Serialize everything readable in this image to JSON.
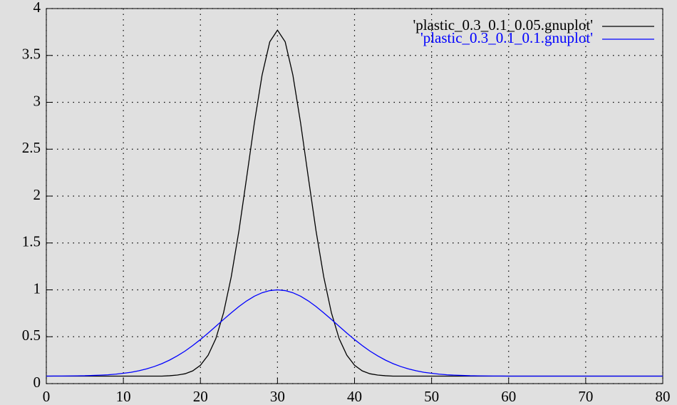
{
  "chart_data": {
    "type": "line",
    "x": [
      0,
      1,
      2,
      3,
      4,
      5,
      6,
      7,
      8,
      9,
      10,
      11,
      12,
      13,
      14,
      15,
      16,
      17,
      18,
      19,
      20,
      21,
      22,
      23,
      24,
      25,
      26,
      27,
      28,
      29,
      30,
      31,
      32,
      33,
      34,
      35,
      36,
      37,
      38,
      39,
      40,
      41,
      42,
      43,
      44,
      45,
      46,
      47,
      48,
      49,
      50,
      51,
      52,
      53,
      54,
      55,
      56,
      57,
      58,
      59,
      60,
      61,
      62,
      63,
      64,
      65,
      66,
      67,
      68,
      69,
      70,
      71,
      72,
      73,
      74,
      75,
      76,
      77,
      78,
      79,
      80
    ],
    "series": [
      {
        "name": "'plastic_0.3_0.1_0.05.gnuplot'",
        "color": "#000000",
        "values": [
          0.08,
          0.08,
          0.08,
          0.08,
          0.08,
          0.08,
          0.08,
          0.08,
          0.08,
          0.08,
          0.08,
          0.08,
          0.08,
          0.08,
          0.08,
          0.08,
          0.084,
          0.091,
          0.105,
          0.136,
          0.196,
          0.303,
          0.48,
          0.755,
          1.14,
          1.63,
          2.2,
          2.78,
          3.29,
          3.645,
          3.77,
          3.645,
          3.29,
          2.78,
          2.2,
          1.63,
          1.14,
          0.755,
          0.48,
          0.303,
          0.196,
          0.136,
          0.105,
          0.091,
          0.084,
          0.08,
          0.08,
          0.08,
          0.08,
          0.08,
          0.08,
          0.08,
          0.08,
          0.08,
          0.08,
          0.08,
          0.08,
          0.08,
          0.08,
          0.08,
          0.08,
          0.08,
          0.08,
          0.08,
          0.08,
          0.08,
          0.08,
          0.08,
          0.08,
          0.08,
          0.08,
          0.08,
          0.08,
          0.08,
          0.08,
          0.08,
          0.08,
          0.08,
          0.08,
          0.08,
          0.08
        ]
      },
      {
        "name": "'plastic_0.3_0.1_0.1.gnuplot'",
        "color": "#0000ff",
        "values": [
          0.08,
          0.081,
          0.081,
          0.082,
          0.083,
          0.084,
          0.087,
          0.09,
          0.094,
          0.101,
          0.11,
          0.121,
          0.137,
          0.157,
          0.182,
          0.213,
          0.251,
          0.296,
          0.347,
          0.406,
          0.47,
          0.539,
          0.611,
          0.684,
          0.755,
          0.822,
          0.882,
          0.932,
          0.969,
          0.992,
          1.0,
          0.992,
          0.969,
          0.932,
          0.882,
          0.822,
          0.755,
          0.684,
          0.611,
          0.539,
          0.47,
          0.406,
          0.347,
          0.296,
          0.251,
          0.213,
          0.182,
          0.157,
          0.137,
          0.121,
          0.11,
          0.101,
          0.094,
          0.09,
          0.087,
          0.084,
          0.083,
          0.082,
          0.081,
          0.081,
          0.08,
          0.08,
          0.08,
          0.08,
          0.08,
          0.08,
          0.08,
          0.08,
          0.08,
          0.08,
          0.08,
          0.08,
          0.08,
          0.08,
          0.08,
          0.08,
          0.08,
          0.08,
          0.08,
          0.08,
          0.08
        ]
      }
    ],
    "xlim": [
      0,
      80
    ],
    "xticks": [
      0,
      10,
      20,
      30,
      40,
      50,
      60,
      70,
      80
    ],
    "ylim": [
      0,
      4
    ],
    "yticks": [
      0,
      0.5,
      1,
      1.5,
      2,
      2.5,
      3,
      3.5,
      4
    ],
    "grid": true,
    "legend": "top-right"
  }
}
